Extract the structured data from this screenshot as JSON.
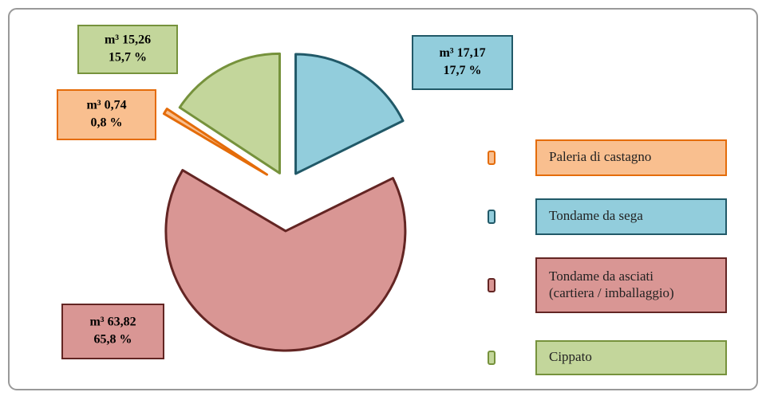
{
  "chart_data": {
    "type": "pie",
    "categories": [
      "Paleria di castagno",
      "Tondame da sega",
      "Tondame da asciati (cartiera / imballaggio)",
      "Cippato"
    ],
    "values": [
      0.74,
      17.17,
      63.82,
      15.26
    ],
    "value_labels": [
      "m³ 0,74",
      "m³ 17,17",
      "m³ 63,82",
      "m³ 15,26"
    ],
    "percentages": [
      0.8,
      17.7,
      65.8,
      15.7
    ],
    "percentage_labels": [
      "0,8 %",
      "17,7 %",
      "65,8 %",
      "15,7 %"
    ],
    "colors": [
      "#f9bf8f",
      "#92cddc",
      "#d99694",
      "#c3d69b"
    ],
    "legend": "right"
  }
}
